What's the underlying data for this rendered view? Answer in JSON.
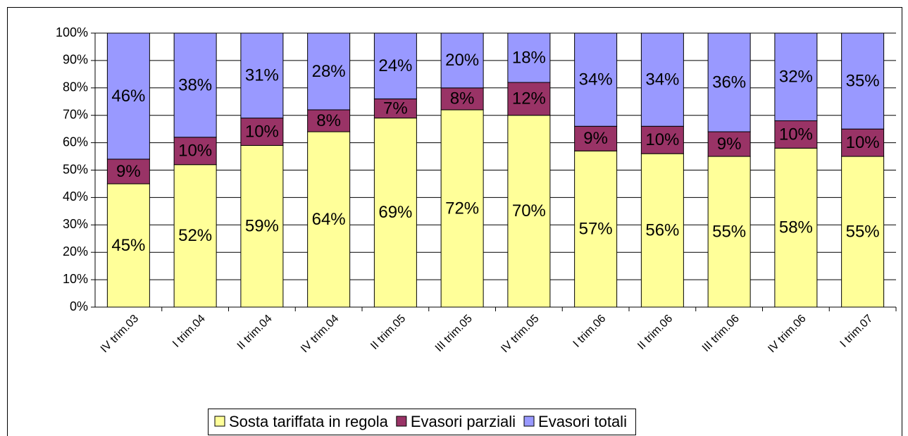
{
  "chart_data": {
    "type": "stacked_bar",
    "categories": [
      "IV trim.03",
      "I trim.04",
      "II trim.04",
      "IV trim.04",
      "II trim.05",
      "III trim.05",
      "IV trim.05",
      "I trim.06",
      "II trim.06",
      "III trim.06",
      "IV trim.06",
      "I trim.07"
    ],
    "series": [
      {
        "name": "Sosta tariffata in regola",
        "color": "#ffff99",
        "label_color": "#000000",
        "values": [
          45,
          52,
          59,
          64,
          69,
          72,
          70,
          57,
          56,
          55,
          58,
          55
        ],
        "value_labels": [
          "45%",
          "52%",
          "59%",
          "64%",
          "69%",
          "72%",
          "70%",
          "57%",
          "56%",
          "55%",
          "58%",
          "55%"
        ]
      },
      {
        "name": "Evasori parziali",
        "color": "#993366",
        "label_color": "#ffffff",
        "values": [
          9,
          10,
          10,
          8,
          7,
          8,
          12,
          9,
          10,
          9,
          10,
          10
        ],
        "value_labels": [
          "9%",
          "10%",
          "10%",
          "8%",
          "7%",
          "8%",
          "12%",
          "9%",
          "10%",
          "9%",
          "10%",
          "10%"
        ]
      },
      {
        "name": "Evasori totali",
        "color": "#9999ff",
        "label_color": "#000000",
        "values": [
          46,
          38,
          31,
          28,
          24,
          20,
          18,
          34,
          34,
          36,
          32,
          35
        ],
        "value_labels": [
          "46%",
          "38%",
          "31%",
          "28%",
          "24%",
          "20%",
          "18%",
          "34%",
          "34%",
          "36%",
          "32%",
          "35%"
        ]
      }
    ],
    "ylim": [
      0,
      100
    ],
    "yticks": [
      {
        "value": 0,
        "label": "0%"
      },
      {
        "value": 10,
        "label": "10%"
      },
      {
        "value": 20,
        "label": "20%"
      },
      {
        "value": 30,
        "label": "30%"
      },
      {
        "value": 40,
        "label": "40%"
      },
      {
        "value": 50,
        "label": "50%"
      },
      {
        "value": 60,
        "label": "60%"
      },
      {
        "value": 70,
        "label": "70%"
      },
      {
        "value": 80,
        "label": "80%"
      },
      {
        "value": 90,
        "label": "90%"
      },
      {
        "value": 100,
        "label": "100%"
      }
    ],
    "grid": true,
    "legend": "bottom"
  }
}
